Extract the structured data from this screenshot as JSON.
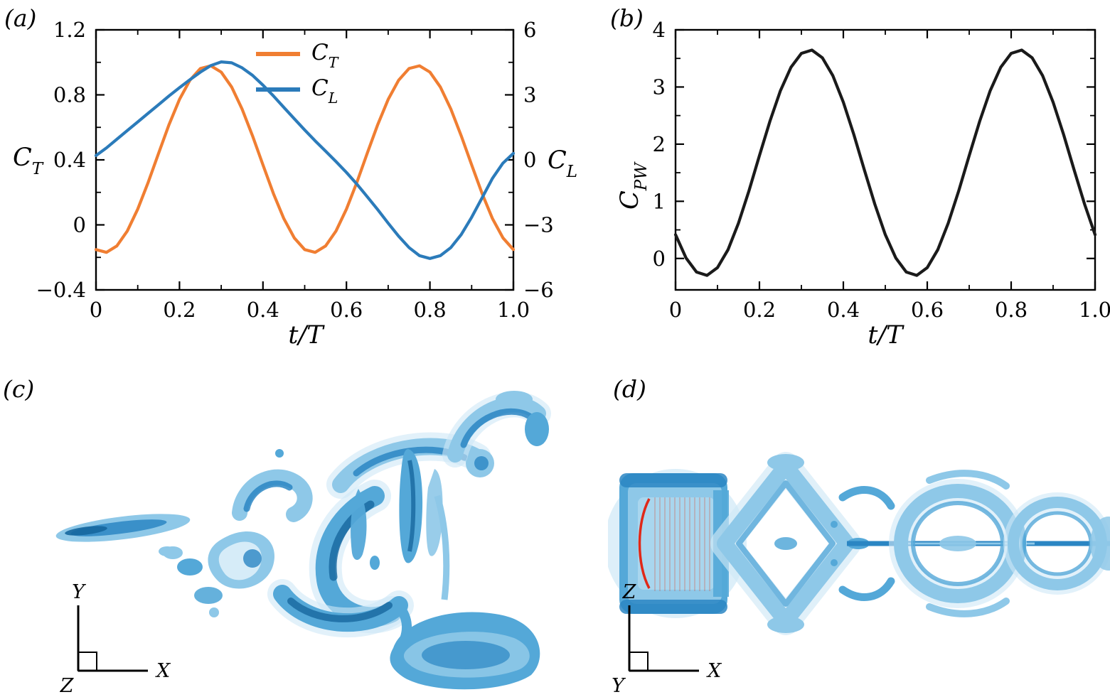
{
  "panels": {
    "a": "(a)",
    "b": "(b)",
    "c": "(c)",
    "d": "(d)"
  },
  "chart_data": [
    {
      "id": "thrust-lift-coefficients",
      "type": "line",
      "xlabel": "t/T",
      "ylabel": "C_T",
      "y2label": "C_L",
      "xlim": [
        0,
        1
      ],
      "ylim": [
        -0.4,
        1.2
      ],
      "y2lim": [
        -6,
        6
      ],
      "grid": false,
      "legend": {
        "position": "top-center"
      },
      "xticks": {
        "values": [
          0,
          0.2,
          0.4,
          0.6,
          0.8,
          1
        ],
        "labels": [
          "0",
          "0.2",
          "0.4",
          "0.6",
          "0.8",
          "1.0"
        ]
      },
      "yticks": {
        "values": [
          -0.4,
          0,
          0.4,
          0.8,
          1.2
        ],
        "labels": [
          "−0.4",
          "0",
          "0.4",
          "0.8",
          "1.2"
        ]
      },
      "y2ticks": {
        "values": [
          -6,
          -3,
          0,
          3,
          6
        ],
        "labels": [
          "−6",
          "−3",
          "0",
          "3",
          "6"
        ]
      },
      "x": [
        0,
        0.025,
        0.05,
        0.075,
        0.1,
        0.125,
        0.15,
        0.175,
        0.2,
        0.225,
        0.25,
        0.275,
        0.3,
        0.325,
        0.35,
        0.375,
        0.4,
        0.425,
        0.45,
        0.475,
        0.5,
        0.525,
        0.55,
        0.575,
        0.6,
        0.625,
        0.65,
        0.675,
        0.7,
        0.725,
        0.75,
        0.775,
        0.8,
        0.825,
        0.85,
        0.875,
        0.9,
        0.925,
        0.95,
        0.975,
        1
      ],
      "series": [
        {
          "name": "C_T",
          "axis": "left",
          "color": "#F07E32",
          "values": [
            -0.152,
            -0.169,
            -0.13,
            -0.038,
            0.097,
            0.262,
            0.441,
            0.617,
            0.772,
            0.89,
            0.962,
            0.979,
            0.94,
            0.848,
            0.713,
            0.548,
            0.369,
            0.193,
            0.038,
            -0.08,
            -0.152,
            -0.169,
            -0.13,
            -0.038,
            0.097,
            0.262,
            0.441,
            0.617,
            0.772,
            0.89,
            0.962,
            0.979,
            0.94,
            0.848,
            0.713,
            0.548,
            0.369,
            0.193,
            0.038,
            -0.08,
            -0.152
          ]
        },
        {
          "name": "C_L",
          "axis": "right",
          "color": "#2B7BBA",
          "values": [
            0.2,
            0.55,
            0.95,
            1.35,
            1.75,
            2.15,
            2.55,
            2.95,
            3.33,
            3.7,
            4.05,
            4.35,
            4.52,
            4.48,
            4.25,
            3.9,
            3.45,
            2.95,
            2.42,
            1.9,
            1.38,
            0.88,
            0.4,
            -0.08,
            -0.58,
            -1.12,
            -1.7,
            -2.3,
            -2.92,
            -3.52,
            -4.05,
            -4.42,
            -4.55,
            -4.42,
            -4.05,
            -3.45,
            -2.65,
            -1.75,
            -0.85,
            -0.15,
            0.3
          ]
        }
      ]
    },
    {
      "id": "power-coefficient",
      "type": "line",
      "xlabel": "t/T",
      "ylabel": "C_PW",
      "xlim": [
        0,
        1
      ],
      "ylim": [
        -0.55,
        4
      ],
      "grid": false,
      "xticks": {
        "values": [
          0,
          0.2,
          0.4,
          0.6,
          0.8,
          1
        ],
        "labels": [
          "0",
          "0.2",
          "0.4",
          "0.6",
          "0.8",
          "1.0"
        ]
      },
      "yticks": {
        "values": [
          0,
          1,
          2,
          3,
          4
        ],
        "labels": [
          "0",
          "1",
          "2",
          "3",
          "4"
        ]
      },
      "x": [
        0,
        0.025,
        0.05,
        0.075,
        0.1,
        0.125,
        0.15,
        0.175,
        0.2,
        0.225,
        0.25,
        0.275,
        0.3,
        0.325,
        0.35,
        0.375,
        0.4,
        0.425,
        0.45,
        0.475,
        0.5,
        0.525,
        0.55,
        0.575,
        0.6,
        0.625,
        0.65,
        0.675,
        0.7,
        0.725,
        0.75,
        0.775,
        0.8,
        0.825,
        0.85,
        0.875,
        0.9,
        0.925,
        0.95,
        0.975,
        1
      ],
      "series": [
        {
          "name": "C_PW",
          "axis": "left",
          "color": "#1A1A1A",
          "values": [
            0.416,
            0.008,
            -0.238,
            -0.296,
            -0.161,
            0.153,
            0.617,
            1.184,
            1.799,
            2.402,
            2.934,
            3.343,
            3.588,
            3.646,
            3.511,
            3.197,
            2.733,
            2.166,
            1.551,
            0.948,
            0.416,
            0.008,
            -0.238,
            -0.296,
            -0.161,
            0.153,
            0.617,
            1.184,
            1.799,
            2.402,
            2.934,
            3.343,
            3.588,
            3.646,
            3.511,
            3.197,
            2.733,
            2.166,
            1.551,
            0.948,
            0.416
          ]
        }
      ]
    }
  ],
  "axis_triads": {
    "c": {
      "up": "Y",
      "right": "X",
      "corner": "Z"
    },
    "d": {
      "up": "Z",
      "right": "X",
      "corner": "Y"
    }
  }
}
